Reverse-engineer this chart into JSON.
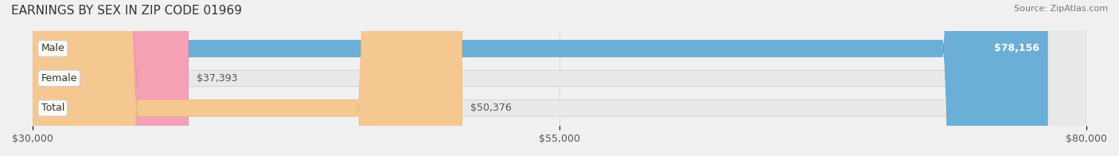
{
  "title": "EARNINGS BY SEX IN ZIP CODE 01969",
  "source": "Source: ZipAtlas.com",
  "categories": [
    "Male",
    "Female",
    "Total"
  ],
  "values": [
    78156,
    37393,
    50376
  ],
  "labels": [
    "$78,156",
    "$37,393",
    "$50,376"
  ],
  "bar_colors": [
    "#6baed6",
    "#f4a0b5",
    "#f5c892"
  ],
  "bar_edge_colors": [
    "#5a9ec6",
    "#e090a5",
    "#e5b882"
  ],
  "xlim": [
    30000,
    80000
  ],
  "xticks": [
    30000,
    55000,
    80000
  ],
  "xticklabels": [
    "$30,000",
    "$55,000",
    "$80,000"
  ],
  "background_color": "#f0f0f0",
  "bar_bg_color": "#e8e8e8",
  "title_fontsize": 11,
  "label_fontsize": 9,
  "tick_fontsize": 9,
  "source_fontsize": 8,
  "bar_height": 0.55,
  "inside_value_threshold": 78000
}
